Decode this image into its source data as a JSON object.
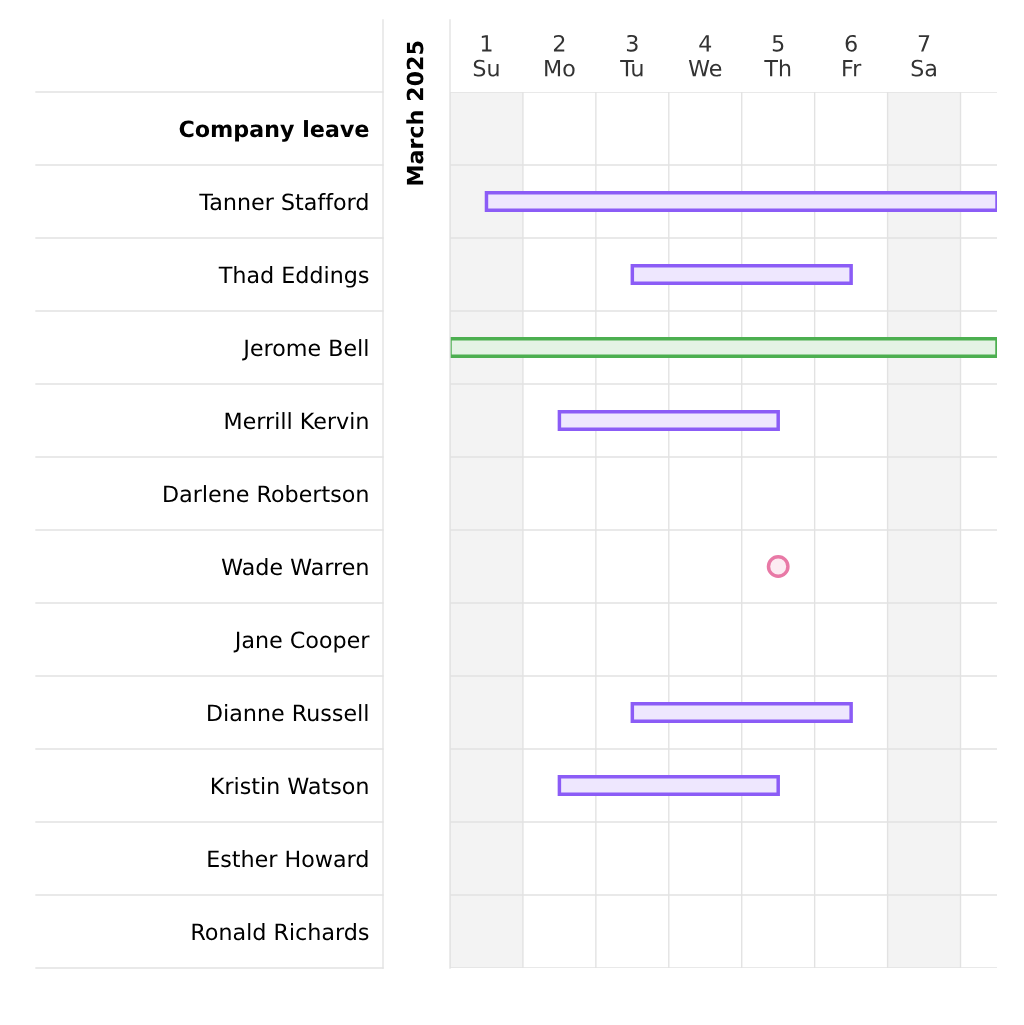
{
  "chart_data": {
    "type": "bar",
    "orientation": "horizontal",
    "categories": [
      "Company leave",
      "Tanner Stafford",
      "Thad Eddings",
      "Jerome Bell",
      "Merrill Kervin",
      "Darlene Robertson",
      "Wade Warren",
      "Jane Cooper",
      "Dianne Russell",
      "Kristin Watson",
      "Esther Howard",
      "Ronald Richards"
    ],
    "series": [
      {
        "color": "#8b5cf6",
        "base": [
          null,
          1,
          3,
          null,
          2,
          null,
          null,
          null,
          3,
          2,
          null,
          null
        ],
        "values": [
          null,
          7,
          3,
          null,
          3,
          null,
          null,
          null,
          3,
          3,
          null,
          null
        ]
      },
      {
        "color": "#4caf50",
        "base": [
          null,
          null,
          null,
          0.5,
          null,
          null,
          null,
          null,
          null,
          null,
          null,
          null
        ],
        "values": [
          null,
          null,
          null,
          7.5,
          null,
          null,
          null,
          null,
          null,
          null,
          null,
          null
        ]
      },
      {
        "type": "scatter",
        "color": "#e879a6",
        "values": [
          null,
          null,
          null,
          null,
          null,
          null,
          5,
          null,
          null,
          null,
          null,
          null
        ]
      }
    ],
    "marker": "circle",
    "xlim": [
      0.5,
      8.0
    ],
    "xticks": [
      {
        "value": 1,
        "label": "1\nSu"
      },
      {
        "value": 2,
        "label": "2\nMo"
      },
      {
        "value": 3,
        "label": "3\nTu"
      },
      {
        "value": 4,
        "label": "4\nWe"
      },
      {
        "value": 5,
        "label": "5\nTh"
      },
      {
        "value": 6,
        "label": "6\nFr"
      },
      {
        "value": 7,
        "label": "7\nSa"
      }
    ],
    "grid": true,
    "bands": [
      {
        "axis": "x",
        "from": 0.5,
        "to": 1.5,
        "color": "#f3f3f3"
      },
      {
        "axis": "x",
        "from": 6.5,
        "to": 7.5,
        "color": "#f3f3f3"
      }
    ],
    "annotations": [
      "March 2025"
    ]
  }
}
